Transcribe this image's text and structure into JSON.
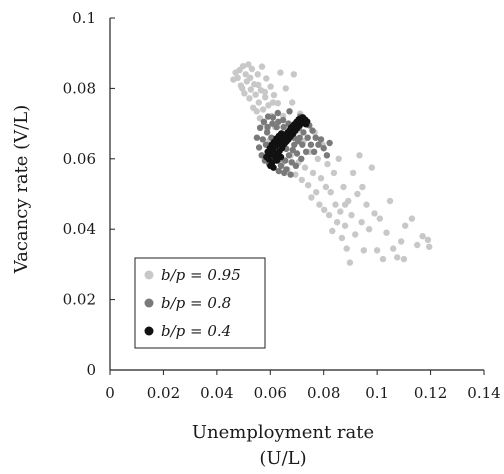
{
  "chart_data": {
    "type": "scatter",
    "title": "",
    "xlabel": "Unemployment rate",
    "xlabel_line2": "(U/L)",
    "ylabel": "Vacancy rate (V/L)",
    "xlim": [
      0,
      0.14
    ],
    "ylim": [
      0,
      0.1
    ],
    "x_ticks": [
      "0",
      "0.02",
      "0.04",
      "0.06",
      "0.08",
      "0.1",
      "0.12",
      "0.14"
    ],
    "y_ticks": [
      "0",
      "0.02",
      "0.04",
      "0.06",
      "0.08",
      "0.1"
    ],
    "grid": false,
    "legend_placement": "bottom-left",
    "series": [
      {
        "name": "b/p = 0.95",
        "color": "#c8c8c8",
        "points": [
          [
            0.0462,
            0.0825
          ],
          [
            0.047,
            0.0845
          ],
          [
            0.0478,
            0.083
          ],
          [
            0.0485,
            0.0852
          ],
          [
            0.049,
            0.0808
          ],
          [
            0.0498,
            0.0863
          ],
          [
            0.0503,
            0.0786
          ],
          [
            0.0508,
            0.084
          ],
          [
            0.0512,
            0.082
          ],
          [
            0.0518,
            0.0868
          ],
          [
            0.0522,
            0.0772
          ],
          [
            0.0527,
            0.0797
          ],
          [
            0.0531,
            0.0855
          ],
          [
            0.0536,
            0.0745
          ],
          [
            0.054,
            0.0812
          ],
          [
            0.0545,
            0.0782
          ],
          [
            0.0549,
            0.0735
          ],
          [
            0.0553,
            0.084
          ],
          [
            0.0557,
            0.076
          ],
          [
            0.0561,
            0.0715
          ],
          [
            0.0565,
            0.0795
          ],
          [
            0.0569,
            0.0862
          ],
          [
            0.0573,
            0.074
          ],
          [
            0.0577,
            0.07
          ],
          [
            0.0581,
            0.0775
          ],
          [
            0.0585,
            0.0828
          ],
          [
            0.0589,
            0.0684
          ],
          [
            0.0593,
            0.0752
          ],
          [
            0.0597,
            0.0652
          ],
          [
            0.0601,
            0.0805
          ],
          [
            0.0605,
            0.0722
          ],
          [
            0.061,
            0.0632
          ],
          [
            0.0614,
            0.0781
          ],
          [
            0.0618,
            0.069
          ],
          [
            0.0623,
            0.06
          ],
          [
            0.0628,
            0.0758
          ],
          [
            0.0633,
            0.0665
          ],
          [
            0.0638,
            0.0845
          ],
          [
            0.0643,
            0.0585
          ],
          [
            0.0648,
            0.0722
          ],
          [
            0.0653,
            0.063
          ],
          [
            0.0658,
            0.08
          ],
          [
            0.0664,
            0.057
          ],
          [
            0.067,
            0.0695
          ],
          [
            0.0676,
            0.061
          ],
          [
            0.0682,
            0.076
          ],
          [
            0.0688,
            0.084
          ],
          [
            0.0694,
            0.0555
          ],
          [
            0.07,
            0.068
          ],
          [
            0.0706,
            0.059
          ],
          [
            0.0712,
            0.0728
          ],
          [
            0.0718,
            0.054
          ],
          [
            0.0724,
            0.065
          ],
          [
            0.073,
            0.0575
          ],
          [
            0.0736,
            0.07
          ],
          [
            0.0742,
            0.0525
          ],
          [
            0.0748,
            0.062
          ],
          [
            0.0754,
            0.049
          ],
          [
            0.076,
            0.056
          ],
          [
            0.0766,
            0.0675
          ],
          [
            0.0772,
            0.0505
          ],
          [
            0.0778,
            0.06
          ],
          [
            0.0784,
            0.047
          ],
          [
            0.079,
            0.0545
          ],
          [
            0.0796,
            0.064
          ],
          [
            0.0802,
            0.0455
          ],
          [
            0.0808,
            0.052
          ],
          [
            0.0814,
            0.0585
          ],
          [
            0.082,
            0.044
          ],
          [
            0.0826,
            0.0505
          ],
          [
            0.0832,
            0.0395
          ],
          [
            0.0838,
            0.056
          ],
          [
            0.0844,
            0.047
          ],
          [
            0.085,
            0.042
          ],
          [
            0.0856,
            0.06
          ],
          [
            0.0862,
            0.045
          ],
          [
            0.0868,
            0.0375
          ],
          [
            0.0874,
            0.052
          ],
          [
            0.088,
            0.041
          ],
          [
            0.0886,
            0.0345
          ],
          [
            0.0892,
            0.048
          ],
          [
            0.0898,
            0.0305
          ],
          [
            0.0904,
            0.044
          ],
          [
            0.091,
            0.056
          ],
          [
            0.0918,
            0.0385
          ],
          [
            0.0926,
            0.05
          ],
          [
            0.0934,
            0.061
          ],
          [
            0.0942,
            0.042
          ],
          [
            0.095,
            0.034
          ],
          [
            0.096,
            0.047
          ],
          [
            0.097,
            0.04
          ],
          [
            0.098,
            0.0575
          ],
          [
            0.099,
            0.0445
          ],
          [
            0.1,
            0.034
          ],
          [
            0.101,
            0.043
          ],
          [
            0.1022,
            0.0315
          ],
          [
            0.1035,
            0.039
          ],
          [
            0.1048,
            0.048
          ],
          [
            0.106,
            0.0345
          ],
          [
            0.1075,
            0.032
          ],
          [
            0.109,
            0.0365
          ],
          [
            0.1105,
            0.041
          ],
          [
            0.113,
            0.043
          ],
          [
            0.115,
            0.0355
          ],
          [
            0.117,
            0.038
          ],
          [
            0.119,
            0.037
          ],
          [
            0.1195,
            0.035
          ],
          [
            0.11,
            0.0315
          ],
          [
            0.0945,
            0.052
          ],
          [
            0.088,
            0.047
          ],
          [
            0.0495,
            0.08
          ],
          [
            0.0525,
            0.083
          ],
          [
            0.0555,
            0.081
          ],
          [
            0.058,
            0.079
          ],
          [
            0.061,
            0.076
          ]
        ]
      },
      {
        "name": "b/p = 0.8",
        "color": "#7a7a7a",
        "points": [
          [
            0.055,
            0.066
          ],
          [
            0.0558,
            0.0632
          ],
          [
            0.0562,
            0.0688
          ],
          [
            0.0568,
            0.061
          ],
          [
            0.0572,
            0.0655
          ],
          [
            0.0576,
            0.0705
          ],
          [
            0.058,
            0.0595
          ],
          [
            0.0584,
            0.064
          ],
          [
            0.0588,
            0.0675
          ],
          [
            0.0592,
            0.072
          ],
          [
            0.0596,
            0.0585
          ],
          [
            0.06,
            0.062
          ],
          [
            0.0604,
            0.066
          ],
          [
            0.0608,
            0.07
          ],
          [
            0.0612,
            0.0575
          ],
          [
            0.0616,
            0.061
          ],
          [
            0.062,
            0.0645
          ],
          [
            0.0624,
            0.069
          ],
          [
            0.0628,
            0.073
          ],
          [
            0.0632,
            0.0565
          ],
          [
            0.0636,
            0.06
          ],
          [
            0.064,
            0.0635
          ],
          [
            0.0644,
            0.0672
          ],
          [
            0.0648,
            0.071
          ],
          [
            0.0652,
            0.056
          ],
          [
            0.0656,
            0.0595
          ],
          [
            0.066,
            0.0628
          ],
          [
            0.0664,
            0.0662
          ],
          [
            0.0668,
            0.07
          ],
          [
            0.0672,
            0.0735
          ],
          [
            0.0676,
            0.0555
          ],
          [
            0.068,
            0.059
          ],
          [
            0.0684,
            0.0625
          ],
          [
            0.0688,
            0.066
          ],
          [
            0.0692,
            0.0695
          ],
          [
            0.0696,
            0.058
          ],
          [
            0.07,
            0.0615
          ],
          [
            0.0704,
            0.065
          ],
          [
            0.0708,
            0.0688
          ],
          [
            0.0712,
            0.072
          ],
          [
            0.0716,
            0.06
          ],
          [
            0.072,
            0.064
          ],
          [
            0.0724,
            0.0675
          ],
          [
            0.0728,
            0.071
          ],
          [
            0.0734,
            0.062
          ],
          [
            0.074,
            0.066
          ],
          [
            0.0746,
            0.0695
          ],
          [
            0.0752,
            0.064
          ],
          [
            0.0758,
            0.068
          ],
          [
            0.0764,
            0.062
          ],
          [
            0.077,
            0.066
          ],
          [
            0.078,
            0.064
          ],
          [
            0.079,
            0.0655
          ],
          [
            0.08,
            0.063
          ],
          [
            0.0812,
            0.061
          ],
          [
            0.0822,
            0.0645
          ],
          [
            0.059,
            0.069
          ],
          [
            0.061,
            0.0718
          ],
          [
            0.063,
            0.0705
          ],
          [
            0.065,
            0.069
          ],
          [
            0.067,
            0.061
          ],
          [
            0.069,
            0.064
          ],
          [
            0.071,
            0.066
          ],
          [
            0.064,
            0.058
          ],
          [
            0.066,
            0.057
          ]
        ]
      },
      {
        "name": "b/p = 0.4",
        "color": "#111111",
        "points": [
          [
            0.0585,
            0.0605
          ],
          [
            0.059,
            0.062
          ],
          [
            0.0595,
            0.0598
          ],
          [
            0.0598,
            0.063
          ],
          [
            0.0602,
            0.0612
          ],
          [
            0.0605,
            0.064
          ],
          [
            0.0608,
            0.059
          ],
          [
            0.0611,
            0.0625
          ],
          [
            0.0614,
            0.0648
          ],
          [
            0.0617,
            0.0605
          ],
          [
            0.062,
            0.0635
          ],
          [
            0.0623,
            0.0658
          ],
          [
            0.0626,
            0.0615
          ],
          [
            0.0629,
            0.0642
          ],
          [
            0.0632,
            0.0665
          ],
          [
            0.0635,
            0.0622
          ],
          [
            0.0638,
            0.065
          ],
          [
            0.0641,
            0.0672
          ],
          [
            0.0644,
            0.063
          ],
          [
            0.0647,
            0.0658
          ],
          [
            0.065,
            0.064
          ],
          [
            0.0653,
            0.0664
          ],
          [
            0.0656,
            0.0645
          ],
          [
            0.0659,
            0.067
          ],
          [
            0.0662,
            0.065
          ],
          [
            0.0665,
            0.0675
          ],
          [
            0.0668,
            0.0655
          ],
          [
            0.0671,
            0.068
          ],
          [
            0.0674,
            0.0662
          ],
          [
            0.0677,
            0.0688
          ],
          [
            0.068,
            0.0668
          ],
          [
            0.0683,
            0.0692
          ],
          [
            0.0686,
            0.0672
          ],
          [
            0.069,
            0.0698
          ],
          [
            0.0694,
            0.068
          ],
          [
            0.0698,
            0.0705
          ],
          [
            0.0702,
            0.0688
          ],
          [
            0.0706,
            0.0712
          ],
          [
            0.071,
            0.0695
          ],
          [
            0.0714,
            0.0715
          ],
          [
            0.0718,
            0.07
          ],
          [
            0.0722,
            0.0718
          ],
          [
            0.0726,
            0.0705
          ],
          [
            0.073,
            0.0712
          ],
          [
            0.0734,
            0.0698
          ],
          [
            0.0738,
            0.0706
          ],
          [
            0.06,
            0.058
          ],
          [
            0.0612,
            0.0575
          ],
          [
            0.0625,
            0.0595
          ],
          [
            0.064,
            0.0605
          ]
        ]
      }
    ]
  }
}
